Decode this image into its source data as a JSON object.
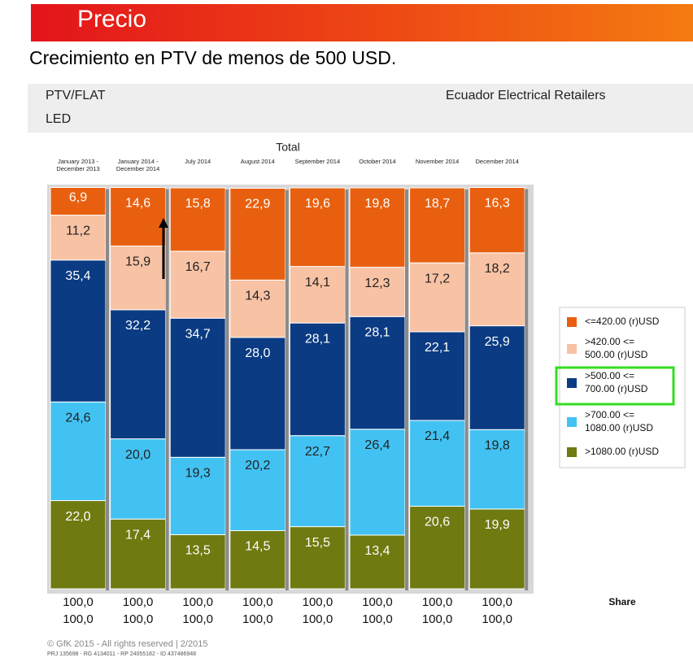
{
  "header": {
    "title": "Precio",
    "subtitle": "Crecimiento en PTV de menos de 500 USD."
  },
  "info": {
    "measure": "PTV/FLAT",
    "product": "LED",
    "region": "Ecuador Electrical Retailers"
  },
  "chart_data": {
    "type": "stacked_bar",
    "title": "Total",
    "categories": [
      "January 2013 - December 2013",
      "January 2014 - December 2014",
      "July 2014",
      "August 2014",
      "September 2014",
      "October 2014",
      "November 2014",
      "December 2014"
    ],
    "ylim": [
      0,
      100
    ],
    "series": [
      {
        "name": "<=420.00 (r)USD",
        "color": "#e8600f",
        "label_color": "#ffffff",
        "values": [
          6.9,
          14.6,
          15.8,
          22.9,
          19.6,
          19.8,
          18.7,
          16.3
        ],
        "value_labels": [
          "6,9",
          "14,6",
          "15,8",
          "22,9",
          "19,6",
          "19,8",
          "18,7",
          "16,3"
        ]
      },
      {
        "name": ">420.00 <= 500.00 (r)USD",
        "color": "#f8c2a4",
        "label_color": "#222222",
        "values": [
          11.2,
          15.9,
          16.7,
          14.3,
          14.1,
          12.3,
          17.2,
          18.2
        ],
        "value_labels": [
          "11,2",
          "15,9",
          "16,7",
          "14,3",
          "14,1",
          "12,3",
          "17,2",
          "18,2"
        ]
      },
      {
        "name": ">500.00 <= 700.00 (r)USD",
        "color": "#0b3b82",
        "label_color": "#ffffff",
        "values": [
          35.4,
          32.2,
          34.7,
          28.0,
          28.1,
          28.1,
          22.1,
          25.9
        ],
        "value_labels": [
          "35,4",
          "32,2",
          "34,7",
          "28,0",
          "28,1",
          "28,1",
          "22,1",
          "25,9"
        ]
      },
      {
        "name": ">700.00 <= 1080.00 (r)USD",
        "color": "#42c2f2",
        "label_color": "#222222",
        "values": [
          24.6,
          20.0,
          19.3,
          20.2,
          22.7,
          26.4,
          21.4,
          19.8
        ],
        "value_labels": [
          "24,6",
          "20,0",
          "19,3",
          "20,2",
          "22,7",
          "26,4",
          "21,4",
          "19,8"
        ]
      },
      {
        "name": ">1080.00 (r)USD",
        "color": "#6f7a10",
        "label_color": "#ffffff",
        "values": [
          22.0,
          17.4,
          13.5,
          14.5,
          15.5,
          13.4,
          20.6,
          19.9
        ],
        "value_labels": [
          "22,0",
          "17,4",
          "13,5",
          "14,5",
          "15,5",
          "13,4",
          "20,6",
          "19,9"
        ]
      }
    ],
    "total_rows": [
      {
        "values": [
          100,
          100,
          100,
          100,
          100,
          100,
          100,
          100
        ],
        "value_labels": [
          "100,0",
          "100,0",
          "100,0",
          "100,0",
          "100,0",
          "100,0",
          "100,0",
          "100,0"
        ]
      },
      {
        "values": [
          100,
          100,
          100,
          100,
          100,
          100,
          100,
          100
        ],
        "value_labels": [
          "100,0",
          "100,0",
          "100,0",
          "100,0",
          "100,0",
          "100,0",
          "100,0",
          "100,0"
        ]
      }
    ],
    "total_rows_label": "Share"
  },
  "footer": {
    "copyright": "© GfK 2015 - All rights reserved | 2/2015",
    "ids": "PRJ 135698 - RG 4134011 - RP 24055182 - ID 437486948"
  }
}
